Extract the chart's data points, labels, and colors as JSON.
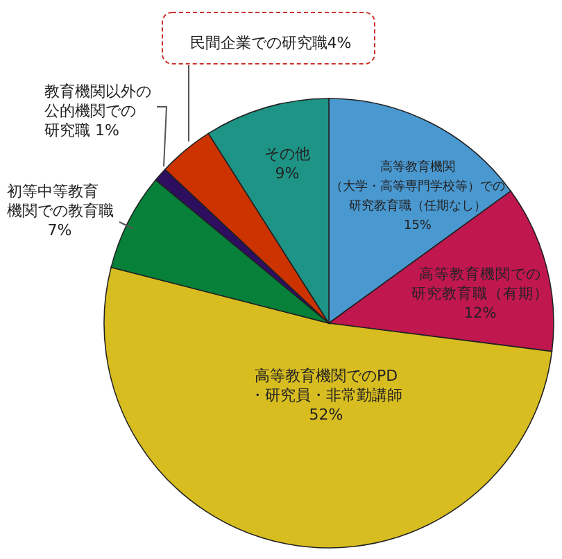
{
  "chart_data": {
    "type": "pie",
    "categories": [
      "高等教育機関（大学・高等専門学校等）での研究教育職（任期なし）",
      "高等教育機関での研究教育職（有期）",
      "高等教育機関でのPD・研究員・非常勤講師",
      "初等中等教育機関での教育職",
      "教育機関以外の公的機関での研究職 1%",
      "民間企業での研究職4%",
      "その他"
    ],
    "values": [
      15,
      12,
      52,
      7,
      1,
      4,
      9
    ],
    "value_labels": [
      "15%",
      "12%",
      "52%",
      "7%",
      null,
      null,
      "9%"
    ],
    "colors": [
      "#4a98d0",
      "#c0174f",
      "#d8bd21",
      "#07803a",
      "#2e0e5e",
      "#cc3300",
      "#1e9486"
    ]
  }
}
